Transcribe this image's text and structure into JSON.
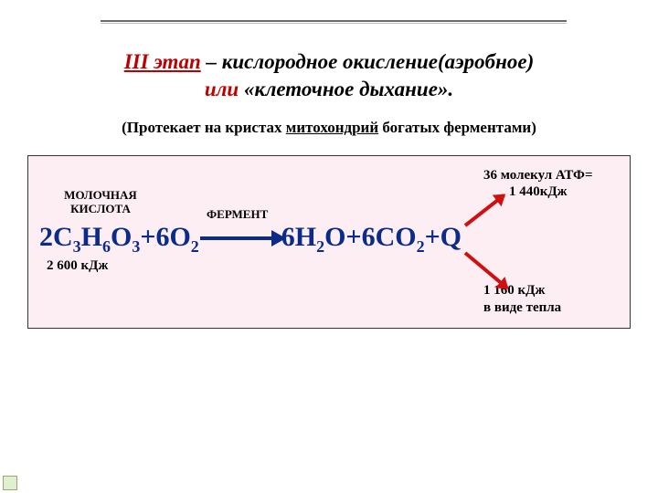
{
  "title": {
    "stage": "III этап",
    "dash": " – ",
    "ox": "кислородное окисление(аэробное)",
    "ili": "или",
    "cell": " «клеточное дыхание»."
  },
  "subtitle": {
    "pre": "(Протекает на кристах ",
    "mito": "митохондрий",
    "post": " богатых ферментами)"
  },
  "panel": {
    "mol_label_l1": "МОЛОЧНАЯ",
    "mol_label_l2": "КИСЛОТА",
    "ferment": "ФЕРМЕНТ",
    "eq_lhs": "2C3H6O3+6O2",
    "eq_rhs": "6H2O+6CO2+Q",
    "kj_under": "2 600 кДж",
    "atp_l1": "36 молекул АТФ=",
    "atp_l2": "1 440кДж",
    "heat_l1": "1 160 кДж",
    "heat_l2": "в виде тепла"
  },
  "colors": {
    "formula": "#0b2b8a",
    "accent_red": "#c00000",
    "arrow_red": "#d01010",
    "panel_bg": "#fdeef3"
  }
}
